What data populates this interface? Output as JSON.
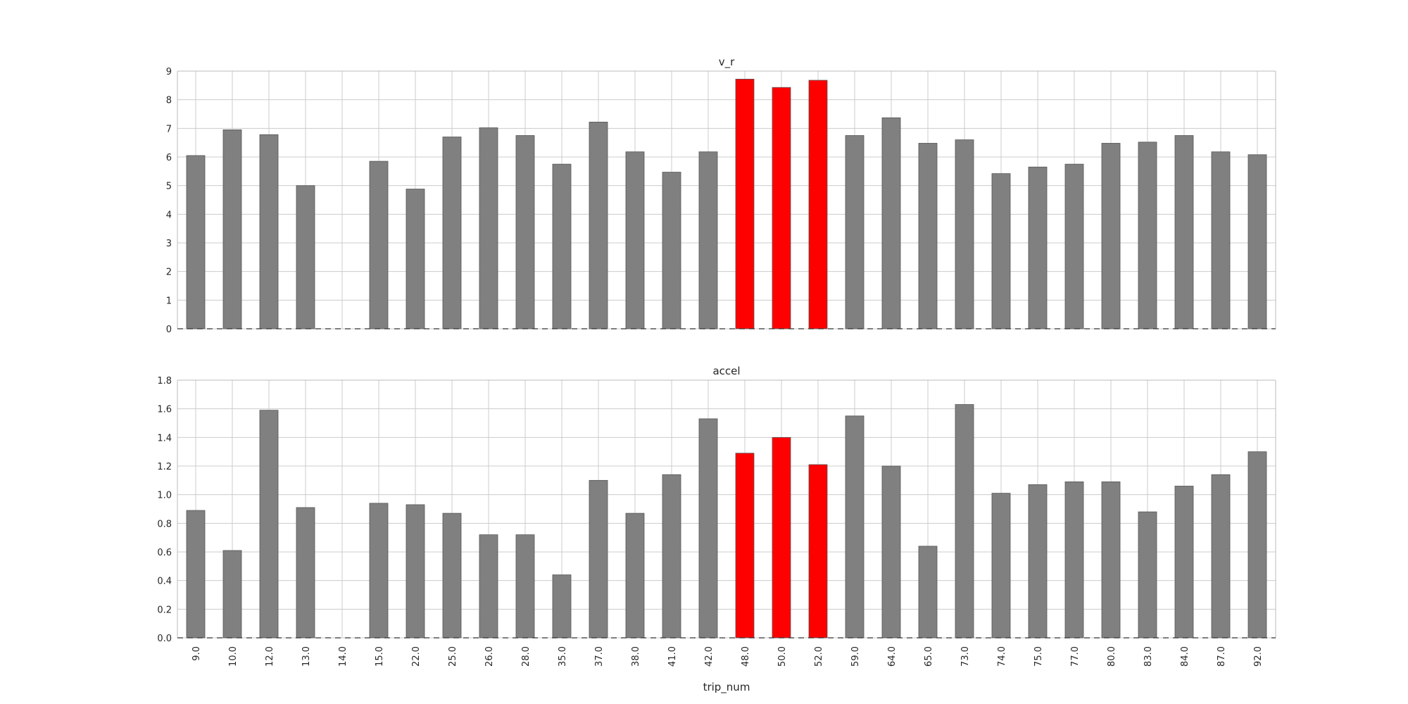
{
  "chart_data": [
    {
      "type": "bar",
      "title": "v_r",
      "xlabel": "",
      "ylabel": "",
      "categories": [
        "9.0",
        "10.0",
        "12.0",
        "13.0",
        "14.0",
        "15.0",
        "22.0",
        "25.0",
        "26.0",
        "28.0",
        "35.0",
        "37.0",
        "38.0",
        "41.0",
        "42.0",
        "48.0",
        "50.0",
        "52.0",
        "59.0",
        "64.0",
        "65.0",
        "73.0",
        "74.0",
        "75.0",
        "77.0",
        "80.0",
        "83.0",
        "84.0",
        "87.0",
        "92.0"
      ],
      "values": [
        6.05,
        6.95,
        6.78,
        5.0,
        0,
        5.85,
        4.88,
        6.7,
        7.02,
        6.75,
        5.75,
        7.22,
        6.18,
        5.47,
        6.18,
        8.72,
        8.43,
        8.68,
        6.75,
        7.37,
        6.48,
        6.6,
        5.42,
        5.65,
        5.75,
        6.48,
        6.52,
        6.75,
        6.18,
        6.08
      ],
      "highlight": [
        "48.0",
        "50.0",
        "52.0"
      ],
      "colors": {
        "bar": "#808080",
        "highlight": "#ff0000",
        "edge": "#555555"
      },
      "ylim": [
        0,
        9
      ],
      "yticks": [
        "0",
        "1",
        "2",
        "3",
        "4",
        "5",
        "6",
        "7",
        "8",
        "9"
      ],
      "grid": true,
      "legend": "none"
    },
    {
      "type": "bar",
      "title": "accel",
      "xlabel": "trip_num",
      "ylabel": "",
      "categories": [
        "9.0",
        "10.0",
        "12.0",
        "13.0",
        "14.0",
        "15.0",
        "22.0",
        "25.0",
        "26.0",
        "28.0",
        "35.0",
        "37.0",
        "38.0",
        "41.0",
        "42.0",
        "48.0",
        "50.0",
        "52.0",
        "59.0",
        "64.0",
        "65.0",
        "73.0",
        "74.0",
        "75.0",
        "77.0",
        "80.0",
        "83.0",
        "84.0",
        "87.0",
        "92.0"
      ],
      "values": [
        0.89,
        0.61,
        1.59,
        0.91,
        0,
        0.94,
        0.93,
        0.87,
        0.72,
        0.72,
        0.44,
        1.1,
        0.87,
        1.14,
        1.53,
        1.29,
        1.4,
        1.21,
        1.55,
        1.2,
        0.64,
        1.63,
        1.01,
        1.07,
        1.09,
        1.09,
        0.88,
        1.06,
        1.14,
        1.3
      ],
      "highlight": [
        "48.0",
        "50.0",
        "52.0"
      ],
      "colors": {
        "bar": "#808080",
        "highlight": "#ff0000",
        "edge": "#555555"
      },
      "ylim": [
        0,
        1.8
      ],
      "yticks": [
        "0.0",
        "0.2",
        "0.4",
        "0.6",
        "0.8",
        "1.0",
        "1.2",
        "1.4",
        "1.6",
        "1.8"
      ],
      "grid": true,
      "legend": "none"
    }
  ]
}
